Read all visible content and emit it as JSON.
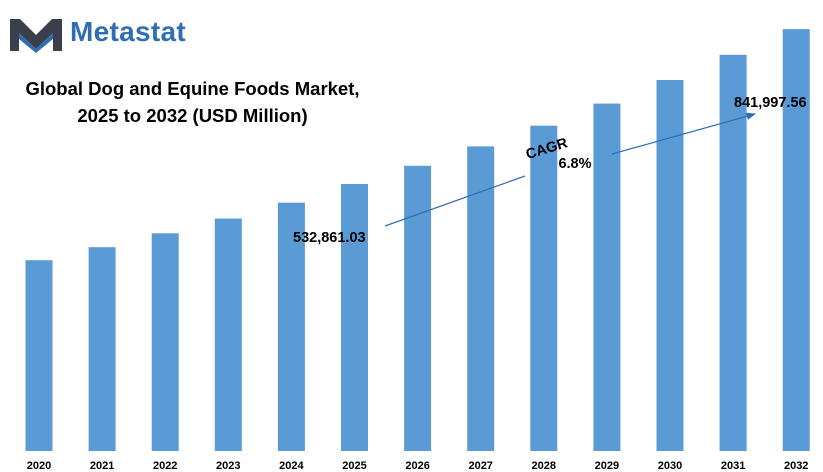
{
  "brand": {
    "name": "Metastat",
    "accent": "#2f6eb5",
    "logo_dark": "#3a3f4b"
  },
  "chart_data": {
    "type": "bar",
    "title_line1": "Global Dog and Equine Foods Market,",
    "title_line2": "2025 to 2032 (USD Million)",
    "categories": [
      "2020",
      "2021",
      "2022",
      "2023",
      "2024",
      "2025",
      "2026",
      "2027",
      "2028",
      "2029",
      "2030",
      "2031",
      "2032"
    ],
    "values": [
      380800,
      406700,
      434400,
      463900,
      495400,
      532861.03,
      569100,
      607800,
      649100,
      693200,
      740300,
      790600,
      841997.56
    ],
    "bar_color": "#5b9bd5",
    "xlabel": "",
    "ylabel": "",
    "ylim": [
      0,
      900000
    ],
    "grid": false,
    "legend": "none",
    "annotations": {
      "start_label": "532,861.03",
      "end_label": "841,997.56",
      "cagr_label": "CAGR",
      "cagr_value": "6.8%"
    }
  }
}
